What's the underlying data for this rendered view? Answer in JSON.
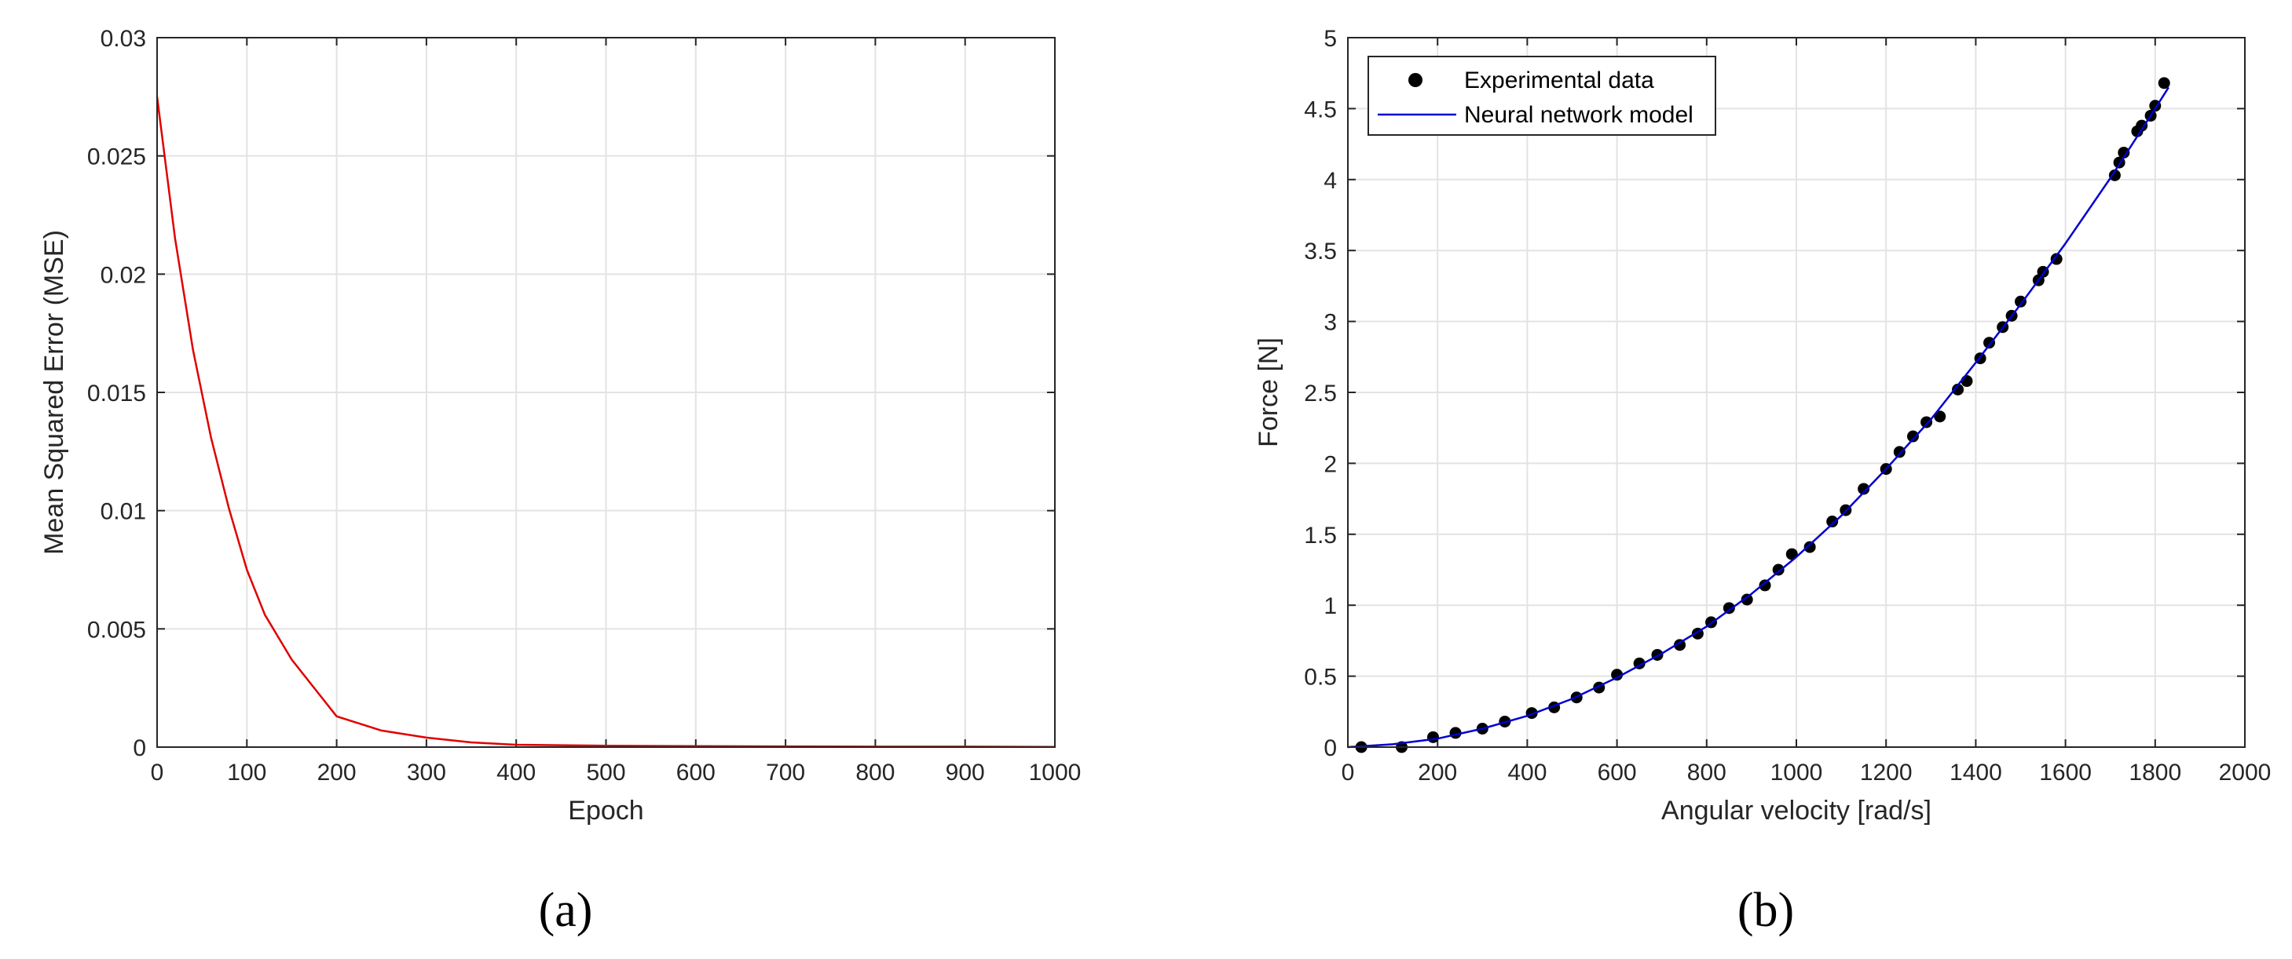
{
  "chart_data": [
    {
      "type": "line",
      "panel_label": "(a)",
      "xlabel": "Epoch",
      "ylabel": "Mean Squared Error (MSE)",
      "xlim": [
        0,
        1000
      ],
      "ylim": [
        0,
        0.03
      ],
      "xticks": [
        0,
        100,
        200,
        300,
        400,
        500,
        600,
        700,
        800,
        900,
        1000
      ],
      "yticks": [
        0,
        0.005,
        0.01,
        0.015,
        0.02,
        0.025,
        0.03
      ],
      "xtick_labels": [
        "0",
        "100",
        "200",
        "300",
        "400",
        "500",
        "600",
        "700",
        "800",
        "900",
        "1000"
      ],
      "ytick_labels": [
        "0",
        "0.005",
        "0.01",
        "0.015",
        "0.02",
        "0.025",
        "0.03"
      ],
      "grid": true,
      "series": [
        {
          "color": "#e00000",
          "x": [
            0,
            20,
            40,
            60,
            80,
            100,
            120,
            150,
            200,
            250,
            300,
            350,
            400,
            450,
            500,
            600,
            700,
            800,
            900,
            1000
          ],
          "y": [
            0.0275,
            0.0215,
            0.0168,
            0.0131,
            0.0101,
            0.0075,
            0.0056,
            0.0037,
            0.0013,
            0.0007,
            0.0004,
            0.0002,
            0.0001,
            8e-05,
            6e-05,
            4e-05,
            3e-05,
            2e-05,
            2e-05,
            1e-05
          ]
        }
      ]
    },
    {
      "type": "scatter",
      "panel_label": "(b)",
      "xlabel": "Angular velocity [rad/s]",
      "ylabel": "Force [N]",
      "xlim": [
        0,
        2000
      ],
      "ylim": [
        0,
        5
      ],
      "xticks": [
        0,
        200,
        400,
        600,
        800,
        1000,
        1200,
        1400,
        1600,
        1800,
        2000
      ],
      "yticks": [
        0,
        0.5,
        1,
        1.5,
        2,
        2.5,
        3,
        3.5,
        4,
        4.5,
        5
      ],
      "xtick_labels": [
        "0",
        "200",
        "400",
        "600",
        "800",
        "1000",
        "1200",
        "1400",
        "1600",
        "1800",
        "2000"
      ],
      "ytick_labels": [
        "0",
        "0.5",
        "1",
        "1.5",
        "2",
        "2.5",
        "3",
        "3.5",
        "4",
        "4.5",
        "5"
      ],
      "grid": true,
      "legend": {
        "placement": "top-left",
        "entries": [
          "Experimental data",
          "Neural network model"
        ]
      },
      "series": [
        {
          "name": "Experimental data",
          "style": "markers",
          "color": "#000000",
          "x": [
            30,
            120,
            190,
            240,
            300,
            350,
            410,
            460,
            510,
            560,
            600,
            650,
            690,
            740,
            780,
            810,
            850,
            890,
            930,
            960,
            990,
            1030,
            1080,
            1110,
            1150,
            1200,
            1230,
            1260,
            1290,
            1320,
            1360,
            1380,
            1410,
            1430,
            1460,
            1480,
            1500,
            1540,
            1550,
            1580,
            1710,
            1720,
            1730,
            1760,
            1770,
            1790,
            1800,
            1820
          ],
          "y": [
            0.0,
            0.0,
            0.07,
            0.1,
            0.13,
            0.18,
            0.24,
            0.28,
            0.35,
            0.42,
            0.51,
            0.59,
            0.65,
            0.72,
            0.8,
            0.88,
            0.98,
            1.04,
            1.14,
            1.25,
            1.36,
            1.41,
            1.59,
            1.67,
            1.82,
            1.96,
            2.08,
            2.19,
            2.29,
            2.33,
            2.52,
            2.58,
            2.74,
            2.85,
            2.96,
            3.04,
            3.14,
            3.29,
            3.35,
            3.44,
            4.03,
            4.12,
            4.19,
            4.34,
            4.38,
            4.45,
            4.52,
            4.68
          ]
        },
        {
          "name": "Neural network model",
          "style": "line",
          "color": "#0000d0",
          "x": [
            0,
            100,
            200,
            300,
            400,
            500,
            600,
            700,
            800,
            900,
            1000,
            1100,
            1200,
            1300,
            1400,
            1500,
            1600,
            1700,
            1800,
            1830
          ],
          "y": [
            0.0,
            0.02,
            0.06,
            0.13,
            0.22,
            0.34,
            0.49,
            0.66,
            0.85,
            1.08,
            1.34,
            1.63,
            1.96,
            2.31,
            2.71,
            3.12,
            3.55,
            4.01,
            4.5,
            4.65
          ]
        }
      ]
    }
  ]
}
